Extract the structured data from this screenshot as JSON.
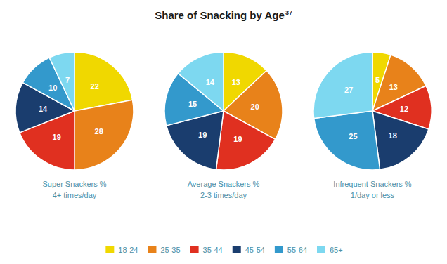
{
  "chart_data": {
    "type": "pie",
    "title": "Share of Snacking by Age",
    "annotations": [
      "37"
    ],
    "categories": [
      "18-24",
      "25-35",
      "35-44",
      "45-54",
      "55-64",
      "65+"
    ],
    "colors": [
      "#f0d800",
      "#e8821a",
      "#e03020",
      "#1a3d6e",
      "#3399cc",
      "#7dd8f0"
    ],
    "series": [
      {
        "name": "Super Snackers %\n4+ times/day",
        "values": [
          22,
          28,
          19,
          14,
          10,
          7
        ]
      },
      {
        "name": "Average Snackers %\n2-3 times/day",
        "values": [
          13,
          20,
          19,
          19,
          15,
          14
        ]
      },
      {
        "name": "Infrequent Snackers %\n1/day or less",
        "values": [
          5,
          13,
          12,
          18,
          25,
          27
        ]
      }
    ],
    "data_labels": true,
    "legend": "bottom"
  }
}
